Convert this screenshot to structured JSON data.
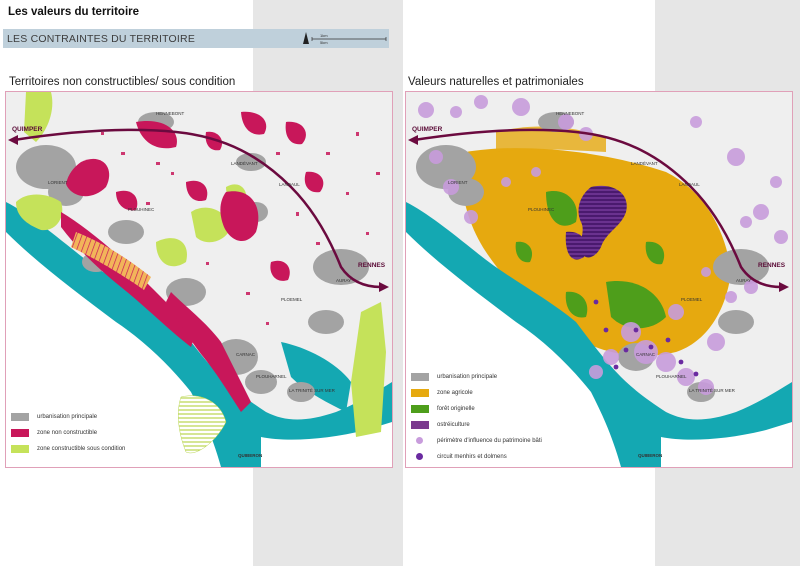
{
  "header": {
    "title": "Les valeurs du territoire",
    "subtitle": "LES CONTRAINTES DU TERRITOIRE",
    "scale_top": "1km",
    "scale_bottom": "5km"
  },
  "left_map": {
    "heading": "Territoires non constructibles/ sous condition",
    "legend": [
      {
        "label": "urbanisation principale",
        "color": "#a3a3a3"
      },
      {
        "label": "zone non constructible",
        "color": "#c8175a"
      },
      {
        "label": "zone constructible sous condition",
        "color": "#c5e25a"
      }
    ]
  },
  "right_map": {
    "heading": "Valeurs naturelles et patrimoniales",
    "legend": [
      {
        "label": "urbanisation principale",
        "color": "#a3a3a3",
        "type": "bar"
      },
      {
        "label": "zone agricole",
        "color": "#e6a90f",
        "type": "bar"
      },
      {
        "label": "forêt originelle",
        "color": "#4e9e1b",
        "type": "bar"
      },
      {
        "label": "ostréiculture",
        "color": "#7a3a8e",
        "type": "bar"
      },
      {
        "label": "périmètre d'influence du patrimoine bâti",
        "color": "#c89cdc",
        "type": "dot"
      },
      {
        "label": "circuit menhirs et dolmens",
        "color": "#6a2aa0",
        "type": "dot"
      }
    ]
  },
  "places": {
    "quimper": "QUIMPER",
    "rennes": "RENNES",
    "quiberon": "QUIBERON",
    "hennebont": "HENNEBONT",
    "landevant": "LANDÉVANT",
    "landaul": "LANDAUL",
    "lorient": "LORIENT",
    "auray": "AURAY",
    "carnac": "CARNAC",
    "ploemel": "PLOEMEL",
    "plouharnel": "PLOUHARNEL",
    "trinite": "LA TRINITÉ SUR MER",
    "plouhinec": "PLOUHINEC"
  },
  "colors": {
    "sea": "#14a8b2",
    "urban": "#a3a3a3",
    "red_zone": "#c8175a",
    "lime_zone": "#c5e25a",
    "route": "#6b0a3f",
    "agri": "#e6a90f",
    "forest": "#4e9e1b",
    "oyster": "#7a3a8e",
    "heritage": "#c89cdc",
    "menhir": "#6a2aa0"
  }
}
